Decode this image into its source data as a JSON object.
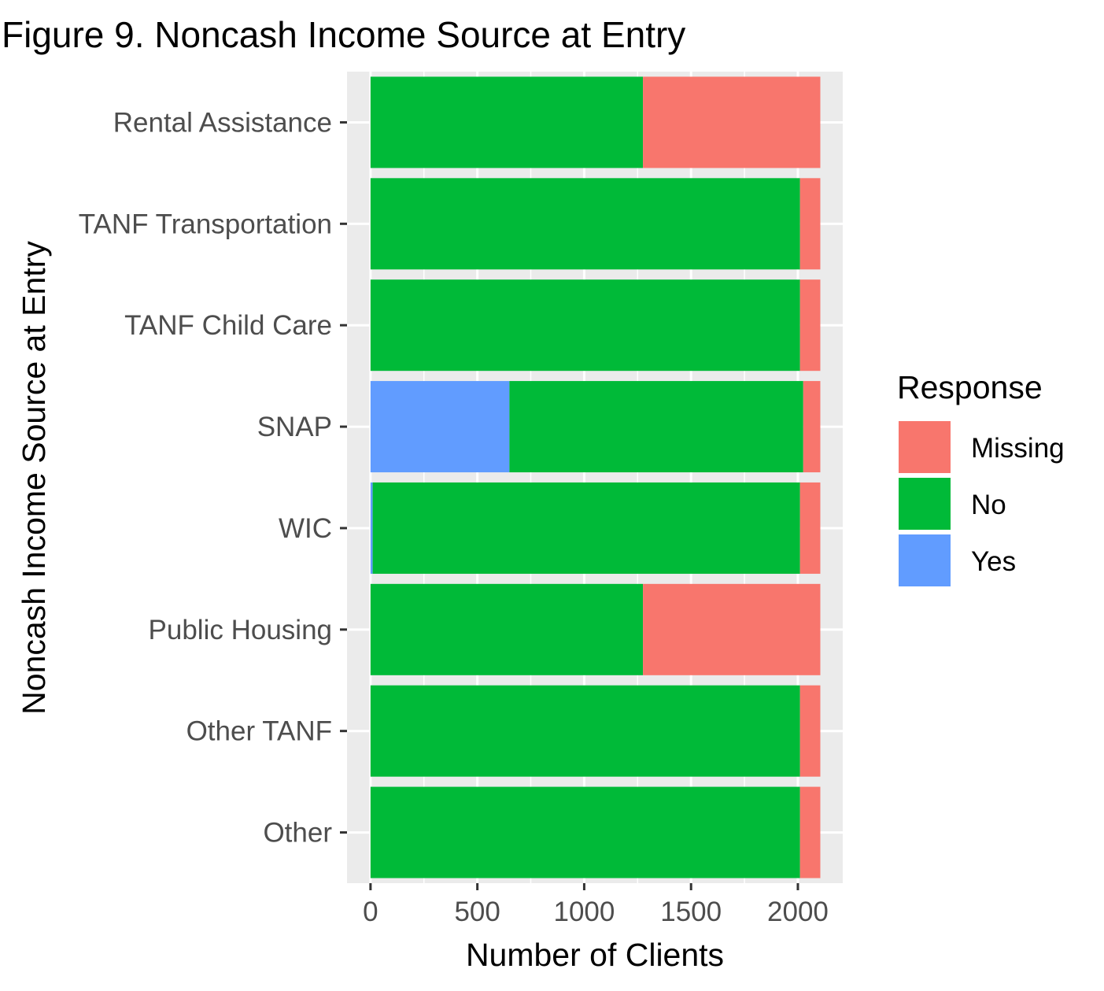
{
  "chart_data": {
    "type": "bar",
    "orientation": "horizontal",
    "stacked": true,
    "title": "Figure 9. Noncash Income Source at Entry",
    "xlabel": "Number of Clients",
    "ylabel": "Noncash Income Source at Entry",
    "categories": [
      "Rental Assistance",
      "TANF Transportation",
      "TANF Child Care",
      "SNAP",
      "WIC",
      "Public Housing",
      "Other TANF",
      "Other"
    ],
    "series": [
      {
        "name": "Yes",
        "color": "#619CFF",
        "values": [
          0,
          0,
          0,
          650,
          10,
          0,
          0,
          0
        ]
      },
      {
        "name": "No",
        "color": "#00BA38",
        "values": [
          1275,
          2010,
          2010,
          1375,
          2000,
          1275,
          2010,
          2010
        ]
      },
      {
        "name": "Missing",
        "color": "#F8766D",
        "values": [
          830,
          95,
          95,
          80,
          95,
          830,
          95,
          95
        ]
      }
    ],
    "xlim": [
      -110,
      2210
    ],
    "xticks": [
      0,
      500,
      1000,
      1500,
      2000
    ],
    "xtick_labels": [
      "0",
      "500",
      "1000",
      "1500",
      "2000"
    ],
    "grid": true,
    "panel_background": "#EBEBEB",
    "legend": {
      "title": "Response",
      "placement": "right",
      "items": [
        {
          "label": "Missing",
          "color": "#F8766D"
        },
        {
          "label": "No",
          "color": "#00BA38"
        },
        {
          "label": "Yes",
          "color": "#619CFF"
        }
      ]
    }
  }
}
